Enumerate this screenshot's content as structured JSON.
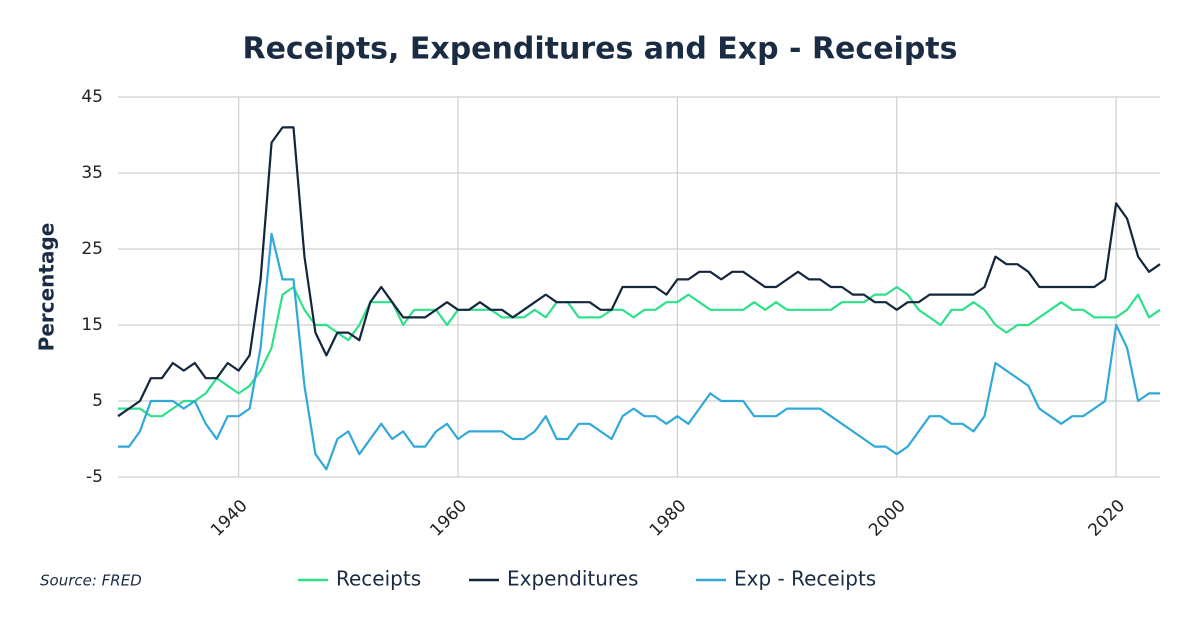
{
  "chart_data": {
    "type": "line",
    "title": "Receipts, Expenditures and Exp - Receipts",
    "y_label": "Percentage",
    "source": "Source: FRED",
    "x": [
      1929,
      1930,
      1931,
      1932,
      1933,
      1934,
      1935,
      1936,
      1937,
      1938,
      1939,
      1940,
      1941,
      1942,
      1943,
      1944,
      1945,
      1946,
      1947,
      1948,
      1949,
      1950,
      1951,
      1952,
      1953,
      1954,
      1955,
      1956,
      1957,
      1958,
      1959,
      1960,
      1961,
      1962,
      1963,
      1964,
      1965,
      1966,
      1967,
      1968,
      1969,
      1970,
      1971,
      1972,
      1973,
      1974,
      1975,
      1976,
      1977,
      1978,
      1979,
      1980,
      1981,
      1982,
      1983,
      1984,
      1985,
      1986,
      1987,
      1988,
      1989,
      1990,
      1991,
      1992,
      1993,
      1994,
      1995,
      1996,
      1997,
      1998,
      1999,
      2000,
      2001,
      2002,
      2003,
      2004,
      2005,
      2006,
      2007,
      2008,
      2009,
      2010,
      2011,
      2012,
      2013,
      2014,
      2015,
      2016,
      2017,
      2018,
      2019,
      2020,
      2021,
      2022,
      2023,
      2024
    ],
    "series": [
      {
        "name": "Receipts",
        "color": "#2ee08a",
        "values": [
          4,
          4,
          4,
          3,
          3,
          4,
          5,
          5,
          6,
          8,
          7,
          6,
          7,
          9,
          12,
          19,
          20,
          17,
          15,
          15,
          14,
          13,
          15,
          18,
          18,
          18,
          15,
          17,
          17,
          17,
          15,
          17,
          17,
          17,
          17,
          16,
          16,
          16,
          17,
          16,
          18,
          18,
          16,
          16,
          16,
          17,
          17,
          16,
          17,
          17,
          18,
          18,
          19,
          18,
          17,
          17,
          17,
          17,
          18,
          17,
          18,
          17,
          17,
          17,
          17,
          17,
          18,
          18,
          18,
          19,
          19,
          20,
          19,
          17,
          16,
          15,
          17,
          17,
          18,
          17,
          15,
          14,
          15,
          15,
          16,
          17,
          18,
          17,
          17,
          16,
          16,
          16,
          17,
          19,
          16,
          17
        ]
      },
      {
        "name": "Expenditures",
        "color": "#14263d",
        "values": [
          3,
          4,
          5,
          8,
          8,
          10,
          9,
          10,
          8,
          8,
          10,
          9,
          11,
          21,
          39,
          41,
          41,
          24,
          14,
          11,
          14,
          14,
          13,
          18,
          20,
          18,
          16,
          16,
          16,
          17,
          18,
          17,
          17,
          18,
          17,
          17,
          16,
          17,
          18,
          19,
          18,
          18,
          18,
          18,
          17,
          17,
          20,
          20,
          20,
          20,
          19,
          21,
          21,
          22,
          22,
          21,
          22,
          22,
          21,
          20,
          20,
          21,
          22,
          21,
          21,
          20,
          20,
          19,
          19,
          18,
          18,
          17,
          18,
          18,
          19,
          19,
          19,
          19,
          19,
          20,
          24,
          23,
          23,
          22,
          20,
          20,
          20,
          20,
          20,
          20,
          21,
          31,
          29,
          24,
          22,
          23
        ]
      },
      {
        "name": "Exp - Receipts",
        "color": "#30a9d8",
        "values": [
          -1,
          -1,
          1,
          5,
          5,
          5,
          4,
          5,
          2,
          0,
          3,
          3,
          4,
          12,
          27,
          21,
          21,
          7,
          -2,
          -4,
          0,
          1,
          -2,
          0,
          2,
          0,
          1,
          -1,
          -1,
          1,
          2,
          0,
          1,
          1,
          1,
          1,
          0,
          0,
          1,
          3,
          0,
          0,
          2,
          2,
          1,
          0,
          3,
          4,
          3,
          3,
          2,
          3,
          2,
          4,
          6,
          5,
          5,
          5,
          3,
          3,
          3,
          4,
          4,
          4,
          4,
          3,
          2,
          1,
          0,
          -1,
          -1,
          -2,
          -1,
          1,
          3,
          3,
          2,
          2,
          1,
          3,
          10,
          9,
          8,
          7,
          4,
          3,
          2,
          3,
          3,
          4,
          5,
          15,
          12,
          5,
          6,
          6
        ]
      }
    ],
    "xlim": [
      1929,
      2024
    ],
    "xticks": [
      1940,
      1960,
      1980,
      2000,
      2020
    ],
    "ylim": [
      -5,
      45
    ],
    "yticks": [
      -5,
      5,
      15,
      25,
      35,
      45
    ],
    "grid": true
  }
}
